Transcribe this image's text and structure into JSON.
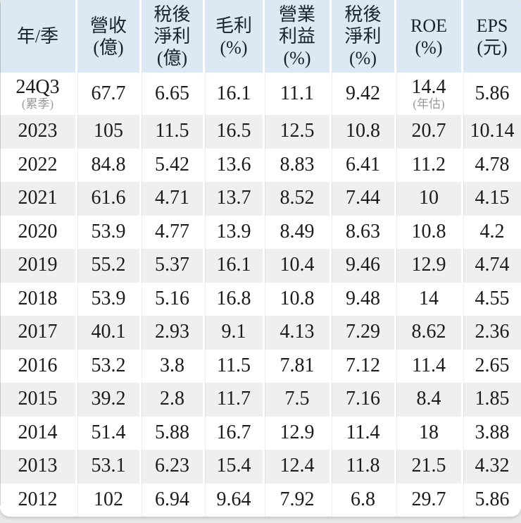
{
  "colors": {
    "header_bg": "#dce8f4",
    "row_bg": "#ffffff",
    "row_alt_bg": "#efefef",
    "page_bg": "#e8e8e8",
    "separator": "#ffffff",
    "header_text": "#17222c",
    "text": "#1b1b1b",
    "note_text": "#9a9a9a"
  },
  "table": {
    "header_cells": [
      {
        "id": "year-quarter",
        "lines": [
          "年/季"
        ]
      },
      {
        "id": "revenue-billion",
        "lines": [
          "營收",
          "(億)"
        ]
      },
      {
        "id": "after-tax-profit-billion",
        "lines": [
          "稅後",
          "淨利",
          "(億)"
        ]
      },
      {
        "id": "gross-margin-pct",
        "lines": [
          "毛利",
          "(%)"
        ]
      },
      {
        "id": "operating-margin-pct",
        "lines": [
          "營業",
          "利益",
          "(%)"
        ]
      },
      {
        "id": "after-tax-margin-pct",
        "lines": [
          "稅後",
          "淨利",
          "(%)"
        ]
      },
      {
        "id": "roe-pct",
        "lines": [
          "ROE",
          "(%)"
        ]
      },
      {
        "id": "eps-ntd",
        "lines": [
          "EPS",
          "(元)"
        ]
      }
    ],
    "rows": [
      {
        "cells": [
          {
            "text": "24Q3",
            "note": "(累季)"
          },
          {
            "text": "67.7"
          },
          {
            "text": "6.65"
          },
          {
            "text": "16.1"
          },
          {
            "text": "11.1"
          },
          {
            "text": "9.42"
          },
          {
            "text": "14.4",
            "note": "(年估)"
          },
          {
            "text": "5.86"
          }
        ]
      },
      {
        "cells": [
          {
            "text": "2023"
          },
          {
            "text": "105"
          },
          {
            "text": "11.5"
          },
          {
            "text": "16.5"
          },
          {
            "text": "12.5"
          },
          {
            "text": "10.8"
          },
          {
            "text": "20.7"
          },
          {
            "text": "10.14"
          }
        ]
      },
      {
        "cells": [
          {
            "text": "2022"
          },
          {
            "text": "84.8"
          },
          {
            "text": "5.42"
          },
          {
            "text": "13.6"
          },
          {
            "text": "8.83"
          },
          {
            "text": "6.41"
          },
          {
            "text": "11.2"
          },
          {
            "text": "4.78"
          }
        ]
      },
      {
        "cells": [
          {
            "text": "2021"
          },
          {
            "text": "61.6"
          },
          {
            "text": "4.71"
          },
          {
            "text": "13.7"
          },
          {
            "text": "8.52"
          },
          {
            "text": "7.44"
          },
          {
            "text": "10"
          },
          {
            "text": "4.15"
          }
        ]
      },
      {
        "cells": [
          {
            "text": "2020"
          },
          {
            "text": "53.9"
          },
          {
            "text": "4.77"
          },
          {
            "text": "13.9"
          },
          {
            "text": "8.49"
          },
          {
            "text": "8.63"
          },
          {
            "text": "10.8"
          },
          {
            "text": "4.2"
          }
        ]
      },
      {
        "cells": [
          {
            "text": "2019"
          },
          {
            "text": "55.2"
          },
          {
            "text": "5.37"
          },
          {
            "text": "16.1"
          },
          {
            "text": "10.4"
          },
          {
            "text": "9.46"
          },
          {
            "text": "12.9"
          },
          {
            "text": "4.74"
          }
        ]
      },
      {
        "cells": [
          {
            "text": "2018"
          },
          {
            "text": "53.9"
          },
          {
            "text": "5.16"
          },
          {
            "text": "16.8"
          },
          {
            "text": "10.8"
          },
          {
            "text": "9.48"
          },
          {
            "text": "14"
          },
          {
            "text": "4.55"
          }
        ]
      },
      {
        "cells": [
          {
            "text": "2017"
          },
          {
            "text": "40.1"
          },
          {
            "text": "2.93"
          },
          {
            "text": "9.1"
          },
          {
            "text": "4.13"
          },
          {
            "text": "7.29"
          },
          {
            "text": "8.62"
          },
          {
            "text": "2.36"
          }
        ]
      },
      {
        "cells": [
          {
            "text": "2016"
          },
          {
            "text": "53.2"
          },
          {
            "text": "3.8"
          },
          {
            "text": "11.5"
          },
          {
            "text": "7.81"
          },
          {
            "text": "7.12"
          },
          {
            "text": "11.4"
          },
          {
            "text": "2.65"
          }
        ]
      },
      {
        "cells": [
          {
            "text": "2015"
          },
          {
            "text": "39.2"
          },
          {
            "text": "2.8"
          },
          {
            "text": "11.7"
          },
          {
            "text": "7.5"
          },
          {
            "text": "7.16"
          },
          {
            "text": "8.4"
          },
          {
            "text": "1.85"
          }
        ]
      },
      {
        "cells": [
          {
            "text": "2014"
          },
          {
            "text": "51.4"
          },
          {
            "text": "5.88"
          },
          {
            "text": "16.7"
          },
          {
            "text": "12.9"
          },
          {
            "text": "11.4"
          },
          {
            "text": "18"
          },
          {
            "text": "3.88"
          }
        ]
      },
      {
        "cells": [
          {
            "text": "2013"
          },
          {
            "text": "53.1"
          },
          {
            "text": "6.23"
          },
          {
            "text": "15.4"
          },
          {
            "text": "12.4"
          },
          {
            "text": "11.8"
          },
          {
            "text": "21.5"
          },
          {
            "text": "4.32"
          }
        ]
      },
      {
        "cells": [
          {
            "text": "2012"
          },
          {
            "text": "102"
          },
          {
            "text": "6.94"
          },
          {
            "text": "9.64"
          },
          {
            "text": "7.92"
          },
          {
            "text": "6.8"
          },
          {
            "text": "29.7"
          },
          {
            "text": "5.86"
          }
        ]
      }
    ]
  },
  "chart_data": {
    "type": "table",
    "columns": [
      "年/季",
      "營收(億)",
      "稅後淨利(億)",
      "毛利(%)",
      "營業利益(%)",
      "稅後淨利(%)",
      "ROE(%)",
      "EPS(元)"
    ],
    "rows": [
      [
        "24Q3(累季)",
        67.7,
        6.65,
        16.1,
        11.1,
        9.42,
        "14.4(年估)",
        5.86
      ],
      [
        "2023",
        105,
        11.5,
        16.5,
        12.5,
        10.8,
        20.7,
        10.14
      ],
      [
        "2022",
        84.8,
        5.42,
        13.6,
        8.83,
        6.41,
        11.2,
        4.78
      ],
      [
        "2021",
        61.6,
        4.71,
        13.7,
        8.52,
        7.44,
        10,
        4.15
      ],
      [
        "2020",
        53.9,
        4.77,
        13.9,
        8.49,
        8.63,
        10.8,
        4.2
      ],
      [
        "2019",
        55.2,
        5.37,
        16.1,
        10.4,
        9.46,
        12.9,
        4.74
      ],
      [
        "2018",
        53.9,
        5.16,
        16.8,
        10.8,
        9.48,
        14,
        4.55
      ],
      [
        "2017",
        40.1,
        2.93,
        9.1,
        4.13,
        7.29,
        8.62,
        2.36
      ],
      [
        "2016",
        53.2,
        3.8,
        11.5,
        7.81,
        7.12,
        11.4,
        2.65
      ],
      [
        "2015",
        39.2,
        2.8,
        11.7,
        7.5,
        7.16,
        8.4,
        1.85
      ],
      [
        "2014",
        51.4,
        5.88,
        16.7,
        12.9,
        11.4,
        18,
        3.88
      ],
      [
        "2013",
        53.1,
        6.23,
        15.4,
        12.4,
        11.8,
        21.5,
        4.32
      ],
      [
        "2012",
        102,
        6.94,
        9.64,
        7.92,
        6.8,
        29.7,
        5.86
      ]
    ]
  }
}
